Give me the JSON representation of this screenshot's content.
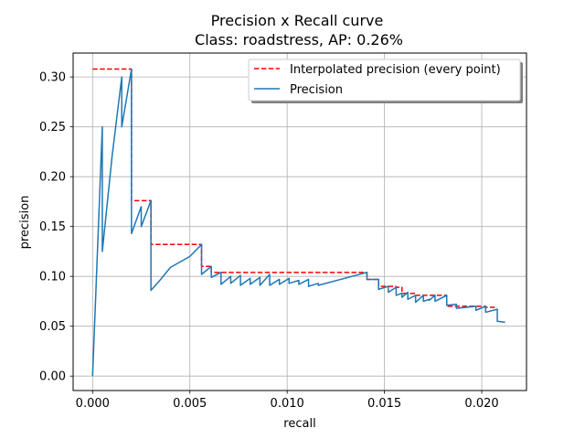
{
  "chart_data": {
    "type": "line",
    "title": "Precision x Recall curve",
    "subtitle": "Class: roadstress, AP: 0.26%",
    "xlabel": "recall",
    "ylabel": "precision",
    "xlim": [
      -0.001,
      0.0223
    ],
    "ylim": [
      -0.0145,
      0.324
    ],
    "grid": true,
    "legend_position": "top-right",
    "x_ticks": [
      {
        "value": 0.0,
        "label": "0.000"
      },
      {
        "value": 0.005,
        "label": "0.005"
      },
      {
        "value": 0.01,
        "label": "0.010"
      },
      {
        "value": 0.015,
        "label": "0.015"
      },
      {
        "value": 0.02,
        "label": "0.020"
      }
    ],
    "y_ticks": [
      {
        "value": 0.0,
        "label": "0.00"
      },
      {
        "value": 0.05,
        "label": "0.05"
      },
      {
        "value": 0.1,
        "label": "0.10"
      },
      {
        "value": 0.15,
        "label": "0.15"
      },
      {
        "value": 0.2,
        "label": "0.20"
      },
      {
        "value": 0.25,
        "label": "0.25"
      },
      {
        "value": 0.3,
        "label": "0.30"
      }
    ],
    "series": [
      {
        "name": "Interpolated precision (every point)",
        "color": "#ff0000",
        "style": "dashed",
        "x": [
          0.0,
          0.002,
          0.002,
          0.003,
          0.003,
          0.0056,
          0.0056,
          0.0061,
          0.0061,
          0.0141,
          0.0141,
          0.0147,
          0.0147,
          0.0156,
          0.0156,
          0.0159,
          0.0159,
          0.0166,
          0.0166,
          0.0182,
          0.0182,
          0.0202,
          0.0202,
          0.0208
        ],
        "y": [
          0.308,
          0.308,
          0.176,
          0.176,
          0.132,
          0.132,
          0.11,
          0.11,
          0.104,
          0.104,
          0.097,
          0.097,
          0.09,
          0.09,
          0.089,
          0.089,
          0.083,
          0.083,
          0.081,
          0.081,
          0.07,
          0.07,
          0.069,
          0.069
        ]
      },
      {
        "name": "Precision",
        "color": "#1f77b4",
        "style": "solid",
        "x": [
          0.0,
          0.0005,
          0.0005,
          0.001,
          0.0015,
          0.0015,
          0.002,
          0.002,
          0.0025,
          0.0025,
          0.003,
          0.003,
          0.0035,
          0.004,
          0.005,
          0.0056,
          0.0056,
          0.0061,
          0.0061,
          0.0066,
          0.0066,
          0.0071,
          0.0071,
          0.0076,
          0.0076,
          0.0081,
          0.0081,
          0.0086,
          0.0086,
          0.0091,
          0.0091,
          0.0096,
          0.0096,
          0.0101,
          0.0101,
          0.0106,
          0.0106,
          0.0111,
          0.0111,
          0.0116,
          0.0116,
          0.0141,
          0.0141,
          0.0147,
          0.0147,
          0.0152,
          0.0152,
          0.0156,
          0.0156,
          0.0159,
          0.0159,
          0.0162,
          0.0162,
          0.0166,
          0.0166,
          0.017,
          0.017,
          0.0173,
          0.0173,
          0.0176,
          0.0176,
          0.0182,
          0.0182,
          0.0187,
          0.0187,
          0.0197,
          0.0197,
          0.0202,
          0.0202,
          0.0208,
          0.0208,
          0.0212
        ],
        "y": [
          0.0,
          0.25,
          0.125,
          0.22,
          0.3,
          0.25,
          0.308,
          0.143,
          0.17,
          0.15,
          0.176,
          0.086,
          0.097,
          0.109,
          0.12,
          0.132,
          0.102,
          0.11,
          0.099,
          0.104,
          0.092,
          0.1,
          0.093,
          0.101,
          0.091,
          0.098,
          0.092,
          0.099,
          0.091,
          0.102,
          0.091,
          0.097,
          0.092,
          0.098,
          0.093,
          0.096,
          0.092,
          0.097,
          0.09,
          0.093,
          0.091,
          0.104,
          0.097,
          0.097,
          0.087,
          0.09,
          0.084,
          0.089,
          0.081,
          0.083,
          0.079,
          0.084,
          0.077,
          0.081,
          0.074,
          0.081,
          0.075,
          0.077,
          0.076,
          0.081,
          0.075,
          0.081,
          0.071,
          0.072,
          0.068,
          0.07,
          0.066,
          0.07,
          0.064,
          0.067,
          0.055,
          0.054
        ]
      }
    ]
  }
}
